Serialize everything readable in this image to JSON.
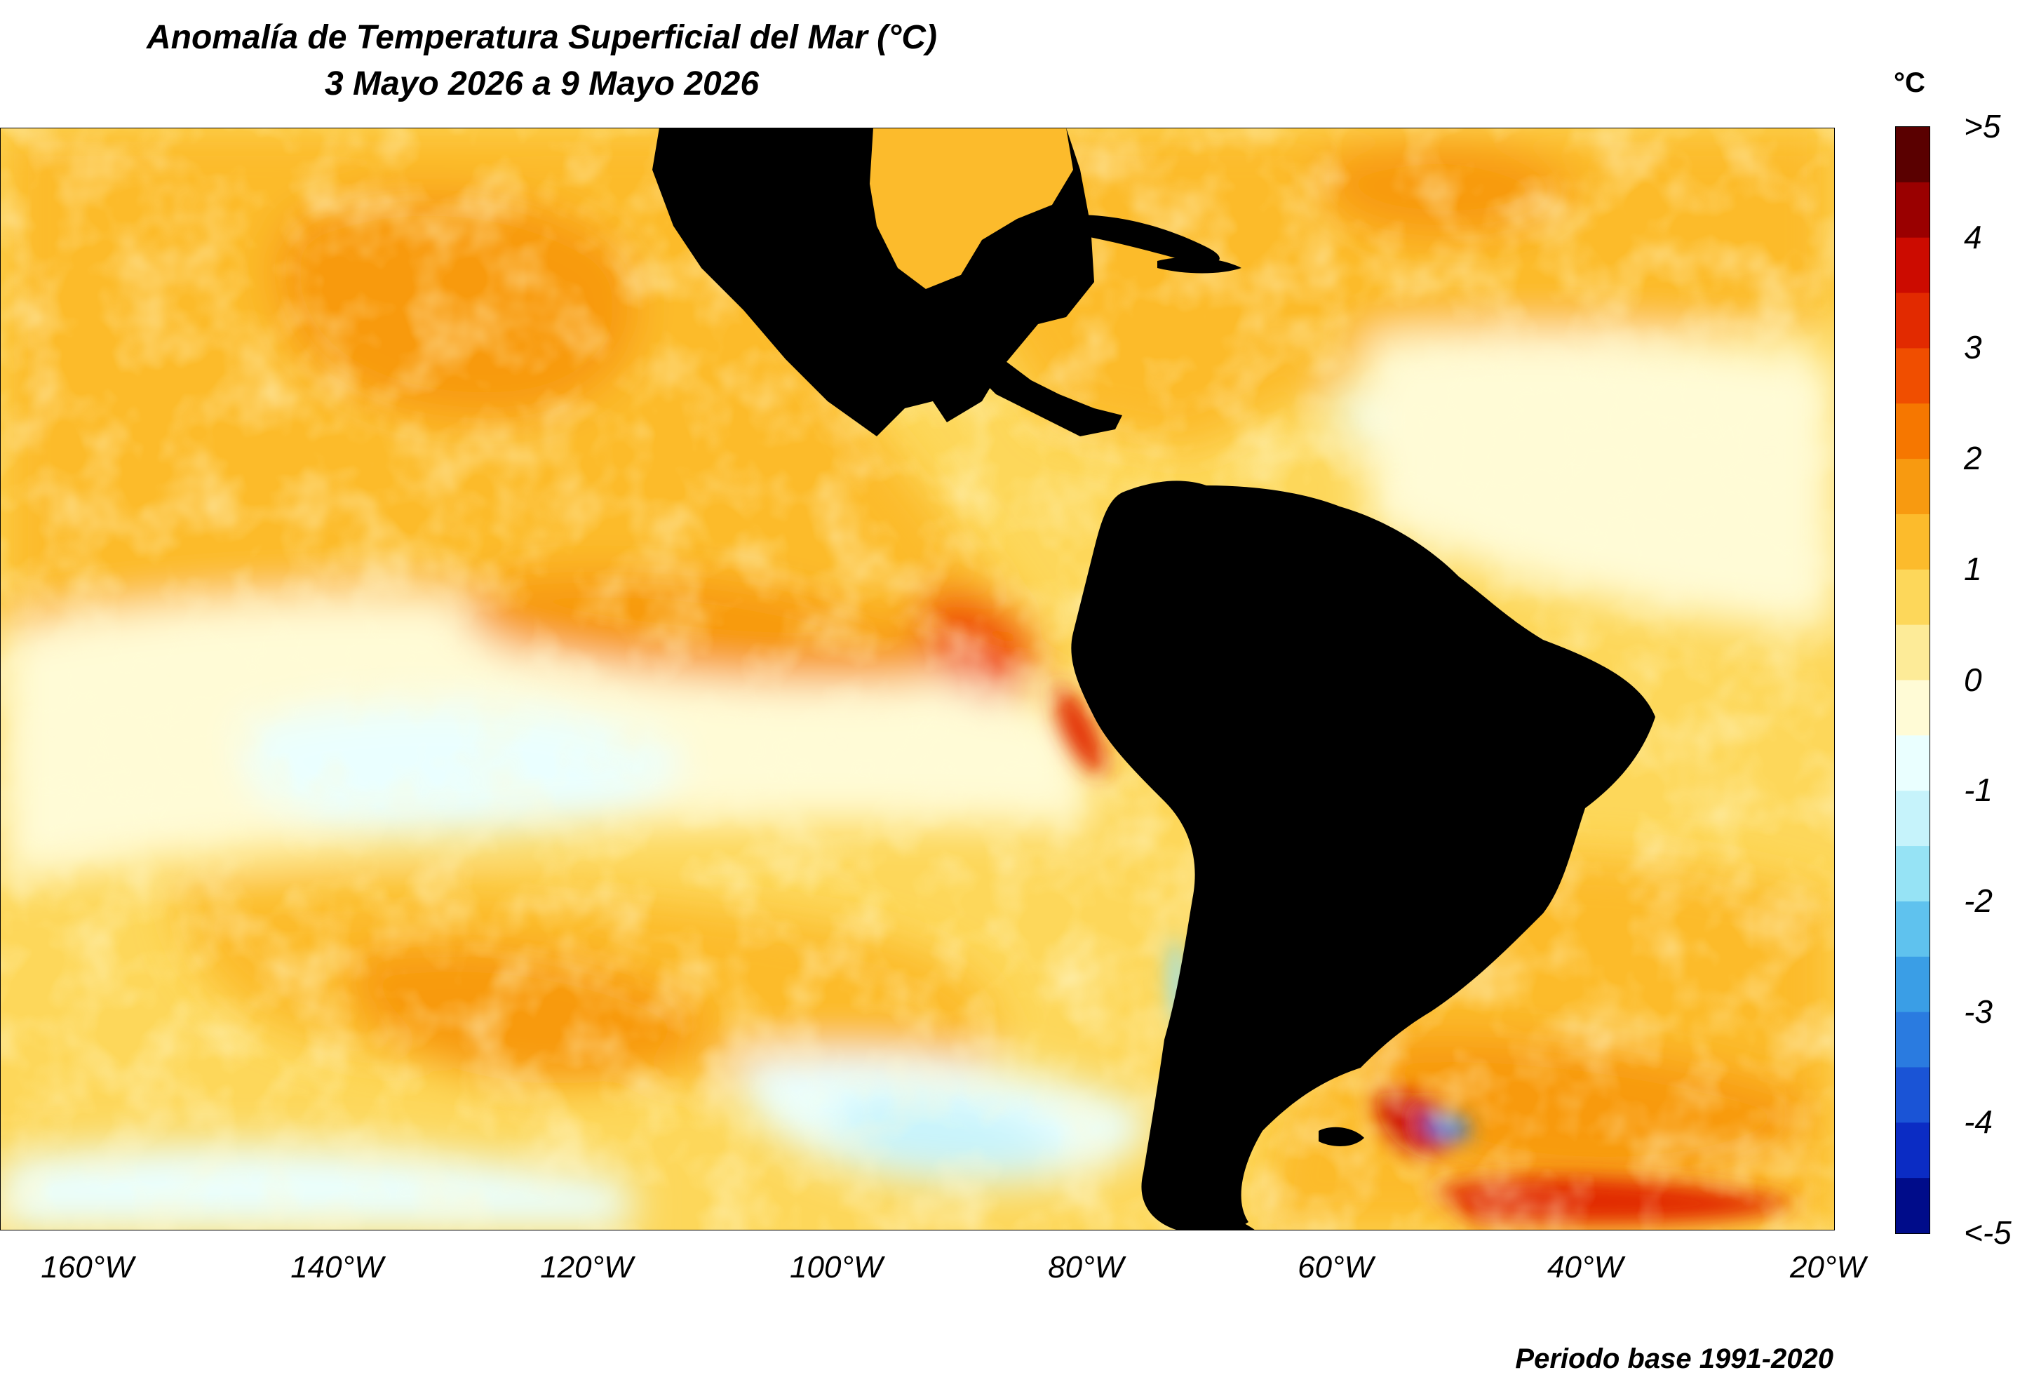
{
  "title": "Anomalía de Temperatura Superficial del Mar (°C)",
  "subtitle": "3 Mayo 2026 a 9 Mayo 2026",
  "colorbar": {
    "unit": "°C",
    "ticks": [
      ">5",
      "4",
      "3",
      "2",
      "1",
      "0",
      "-1",
      "-2",
      "-3",
      "-4",
      "<-5"
    ],
    "colors": [
      "#5a0000",
      "#9a0000",
      "#cc0b00",
      "#e22a00",
      "#f04e00",
      "#f67700",
      "#f89a10",
      "#fcbb2c",
      "#fdd75a",
      "#fdeb98",
      "#fffbd6",
      "#eaffff",
      "#c6f3fb",
      "#96e3f5",
      "#5fc2ee",
      "#3a9ee6",
      "#2a7be0",
      "#1a54d6",
      "#0b2cc4",
      "#000c8a"
    ]
  },
  "x_axis": {
    "ticks": [
      {
        "value": -160,
        "label": "160°W"
      },
      {
        "value": -140,
        "label": "140°W"
      },
      {
        "value": -120,
        "label": "120°W"
      },
      {
        "value": -100,
        "label": "100°W"
      },
      {
        "value": -80,
        "label": "80°W"
      },
      {
        "value": -60,
        "label": "60°W"
      },
      {
        "value": -40,
        "label": "40°W"
      },
      {
        "value": -20,
        "label": "20°W"
      }
    ],
    "range": [
      -167,
      -20
    ]
  },
  "footnote": "Periodo base 1991-2020",
  "palette": {
    "land": "#000000",
    "warm_1": "#fdd75a",
    "warm_2": "#fcbb2c",
    "warm_3": "#f89a10",
    "warm_4": "#f04e00",
    "neutral": "#fffbd6",
    "cool_1": "#eaffff",
    "cool_2": "#96e3f5",
    "cool_3": "#2a7be0"
  }
}
